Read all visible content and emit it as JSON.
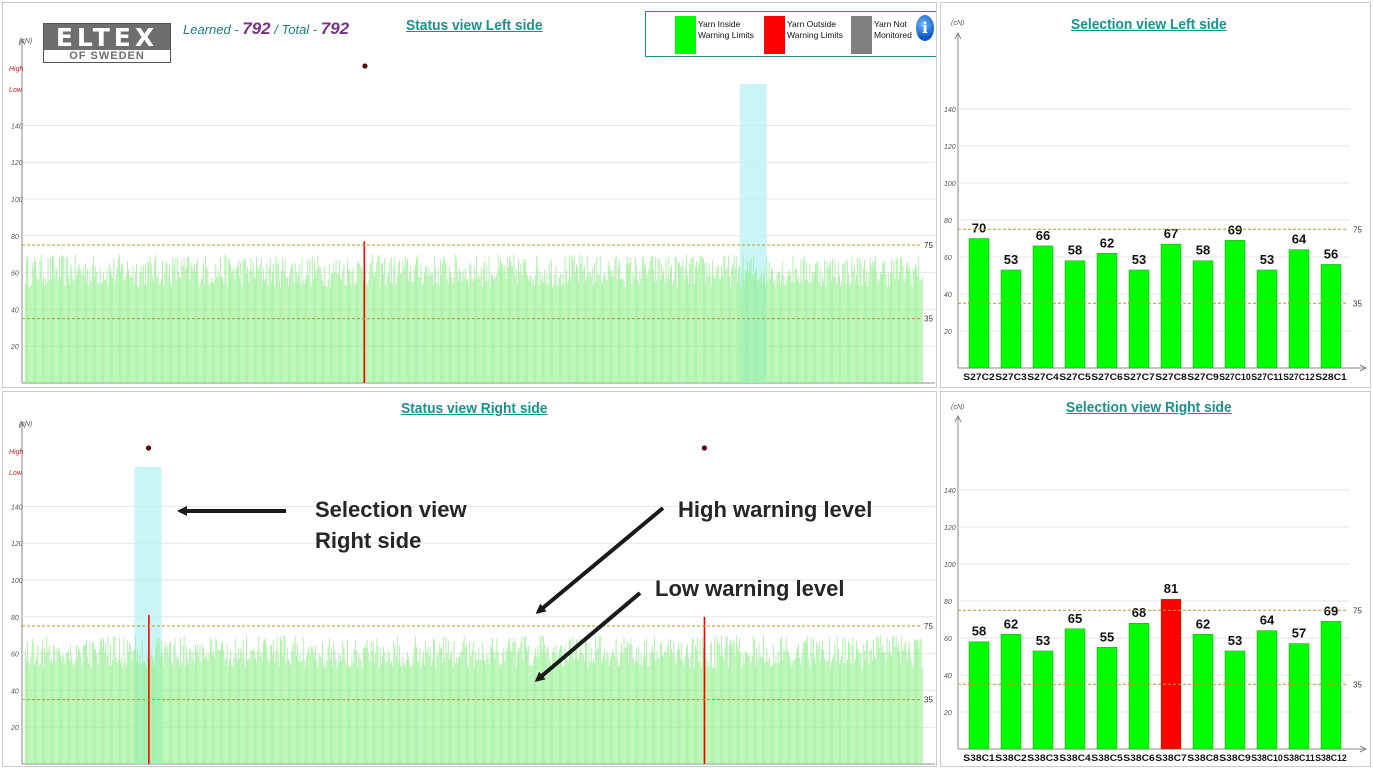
{
  "logo": {
    "main": "ELTEX",
    "sub": "OF SWEDEN"
  },
  "counter": {
    "learned_label": "Learned - ",
    "learned_value": "792",
    "total_label": " / Total - ",
    "total_value": "792"
  },
  "legend": [
    {
      "label": "Yarn Inside Warning Limits",
      "line1": "Yarn Inside",
      "line2": "Warning Limits",
      "color": "#00ff00"
    },
    {
      "label": "Yarn Outside Warning Limits",
      "line1": "Yarn Outside",
      "line2": "Warning Limits",
      "color": "#ff0000"
    },
    {
      "label": "Yarn Not Monitored",
      "line1": "Yarn Not",
      "line2": "Monitored",
      "color": "#808080"
    }
  ],
  "info_icon": "i",
  "colors": {
    "inside": "#00ff00",
    "outside": "#ff0000",
    "not_monitored": "#808080",
    "status_bar": "#8ff08a",
    "selection_highlight": "#b8f2f4",
    "limit_line": "#b39a2b",
    "title": "#1e8f8f",
    "marker": "#5a0a0a"
  },
  "status_left": {
    "title": "Status view Left side",
    "unit": "(cN)",
    "high_label": "High",
    "low_label": "Low",
    "yticks": [
      20,
      40,
      60,
      80,
      100,
      120,
      140
    ],
    "ymax": 165,
    "high_limit": 75,
    "low_limit": 35,
    "high_value_label": "75",
    "low_value_label": "35",
    "positions": 792,
    "selection_start_fraction": 0.796,
    "selection_end_fraction": 0.826,
    "outside_positions_fraction": [
      0.378
    ],
    "outside_values": [
      77
    ],
    "marker_positions_fraction": [
      0.378
    ],
    "typical_range": [
      52,
      70
    ]
  },
  "status_right": {
    "title": "Status view Right side",
    "unit": "(cN)",
    "high_label": "High",
    "low_label": "Low",
    "yticks": [
      20,
      40,
      60,
      80,
      100,
      120,
      140
    ],
    "ymax": 165,
    "high_limit": 75,
    "low_limit": 35,
    "high_value_label": "75",
    "low_value_label": "35",
    "positions": 792,
    "selection_start_fraction": 0.122,
    "selection_end_fraction": 0.152,
    "outside_positions_fraction": [
      0.137,
      0.756
    ],
    "outside_values": [
      81,
      80
    ],
    "marker_positions_fraction": [
      0.137,
      0.756
    ],
    "typical_range": [
      52,
      70
    ]
  },
  "selection_left": {
    "title": "Selection view Left side",
    "unit": "(cN)",
    "yticks": [
      20,
      40,
      60,
      80,
      100,
      120,
      140
    ],
    "ymax": 165,
    "high_limit": 75,
    "low_limit": 35,
    "high_value_label": "75",
    "low_value_label": "35",
    "bars": [
      {
        "label": "S27C2",
        "value": 70,
        "status": "inside"
      },
      {
        "label": "S27C3",
        "value": 53,
        "status": "inside"
      },
      {
        "label": "S27C4",
        "value": 66,
        "status": "inside"
      },
      {
        "label": "S27C5",
        "value": 58,
        "status": "inside"
      },
      {
        "label": "S27C6",
        "value": 62,
        "status": "inside"
      },
      {
        "label": "S27C7",
        "value": 53,
        "status": "inside"
      },
      {
        "label": "S27C8",
        "value": 67,
        "status": "inside"
      },
      {
        "label": "S27C9",
        "value": 58,
        "status": "inside"
      },
      {
        "label": "S27C10",
        "value": 69,
        "status": "inside"
      },
      {
        "label": "S27C11",
        "value": 53,
        "status": "inside"
      },
      {
        "label": "S27C12",
        "value": 64,
        "status": "inside"
      },
      {
        "label": "S28C1",
        "value": 56,
        "status": "inside"
      }
    ]
  },
  "selection_right": {
    "title": "Selection view Right side",
    "unit": "(cN)",
    "yticks": [
      20,
      40,
      60,
      80,
      100,
      120,
      140
    ],
    "ymax": 165,
    "high_limit": 75,
    "low_limit": 35,
    "high_value_label": "75",
    "low_value_label": "35",
    "bars": [
      {
        "label": "S38C1",
        "value": 58,
        "status": "inside"
      },
      {
        "label": "S38C2",
        "value": 62,
        "status": "inside"
      },
      {
        "label": "S38C3",
        "value": 53,
        "status": "inside"
      },
      {
        "label": "S38C4",
        "value": 65,
        "status": "inside"
      },
      {
        "label": "S38C5",
        "value": 55,
        "status": "inside"
      },
      {
        "label": "S38C6",
        "value": 68,
        "status": "inside"
      },
      {
        "label": "S38C7",
        "value": 81,
        "status": "outside"
      },
      {
        "label": "S38C8",
        "value": 62,
        "status": "inside"
      },
      {
        "label": "S38C9",
        "value": 53,
        "status": "inside"
      },
      {
        "label": "S38C10",
        "value": 64,
        "status": "inside"
      },
      {
        "label": "S38C11",
        "value": 57,
        "status": "inside"
      },
      {
        "label": "S38C12",
        "value": 69,
        "status": "inside"
      }
    ]
  },
  "annotations": {
    "selection_line1": "Selection view",
    "selection_line2": "Right side",
    "high_warning": "High warning level",
    "low_warning": "Low warning level"
  }
}
